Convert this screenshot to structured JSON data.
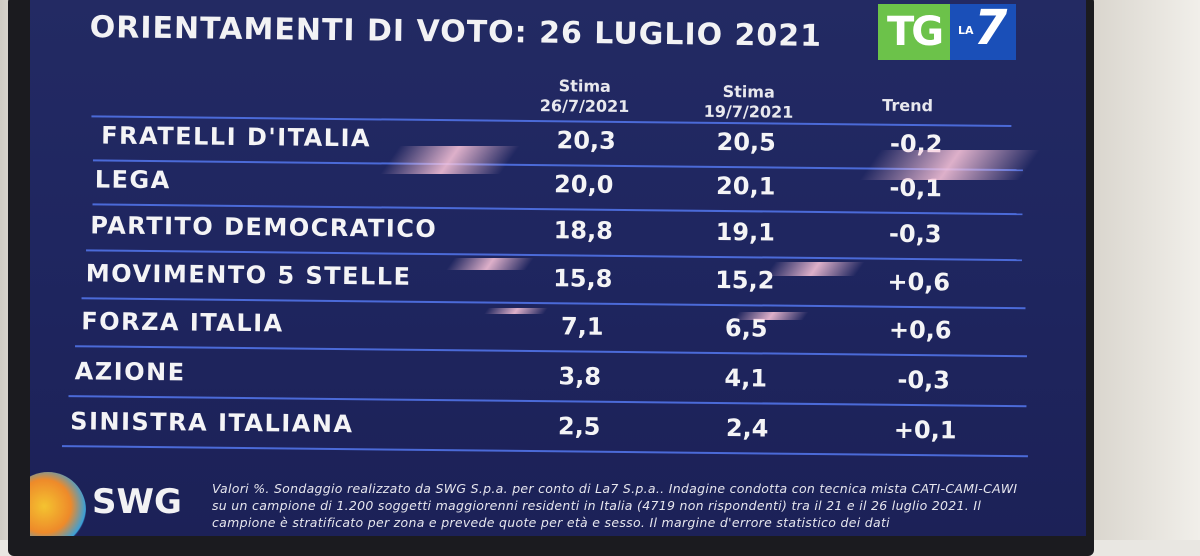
{
  "title": "ORIENTAMENTI DI VOTO: 26 LUGLIO 2021",
  "logo": {
    "tg": "TG",
    "la": "LA",
    "seven": "7"
  },
  "headers": {
    "col1_line1": "Stima",
    "col1_line2": "26/7/2021",
    "col2_line1": "Stima",
    "col2_line2": "19/7/2021",
    "col3": "Trend"
  },
  "rows": [
    {
      "party": "FRATELLI D'ITALIA",
      "current": "20,3",
      "previous": "20,5",
      "trend": "-0,2"
    },
    {
      "party": "LEGA",
      "current": "20,0",
      "previous": "20,1",
      "trend": "-0,1"
    },
    {
      "party": "PARTITO DEMOCRATICO",
      "current": "18,8",
      "previous": "19,1",
      "trend": "-0,3"
    },
    {
      "party": "MOVIMENTO 5 STELLE",
      "current": "15,8",
      "previous": "15,2",
      "trend": "+0,6"
    },
    {
      "party": "FORZA ITALIA",
      "current": "7,1",
      "previous": "6,5",
      "trend": "+0,6"
    },
    {
      "party": "AZIONE",
      "current": "3,8",
      "previous": "4,1",
      "trend": "-0,3"
    },
    {
      "party": "SINISTRA ITALIANA",
      "current": "2,5",
      "previous": "2,4",
      "trend": "+0,1"
    }
  ],
  "footer": {
    "brand": "SWG",
    "note": "Valori %. Sondaggio realizzato da SWG S.p.a. per conto di La7 S.p.a.. Indagine condotta con tecnica mista CATI-CAMI-CAWI su un campione di 1.200 soggetti maggiorenni residenti in Italia (4719 non rispondenti) tra il 21 e il 26 luglio 2021. Il campione è stratificato per zona e prevede quote per età e sesso. Il margine d'errore statistico dei dati"
  },
  "colors": {
    "background": "#1f2660",
    "rule": "#4b6ad8",
    "tg_green": "#6cc24a",
    "la7_blue": "#1a4fb8"
  }
}
